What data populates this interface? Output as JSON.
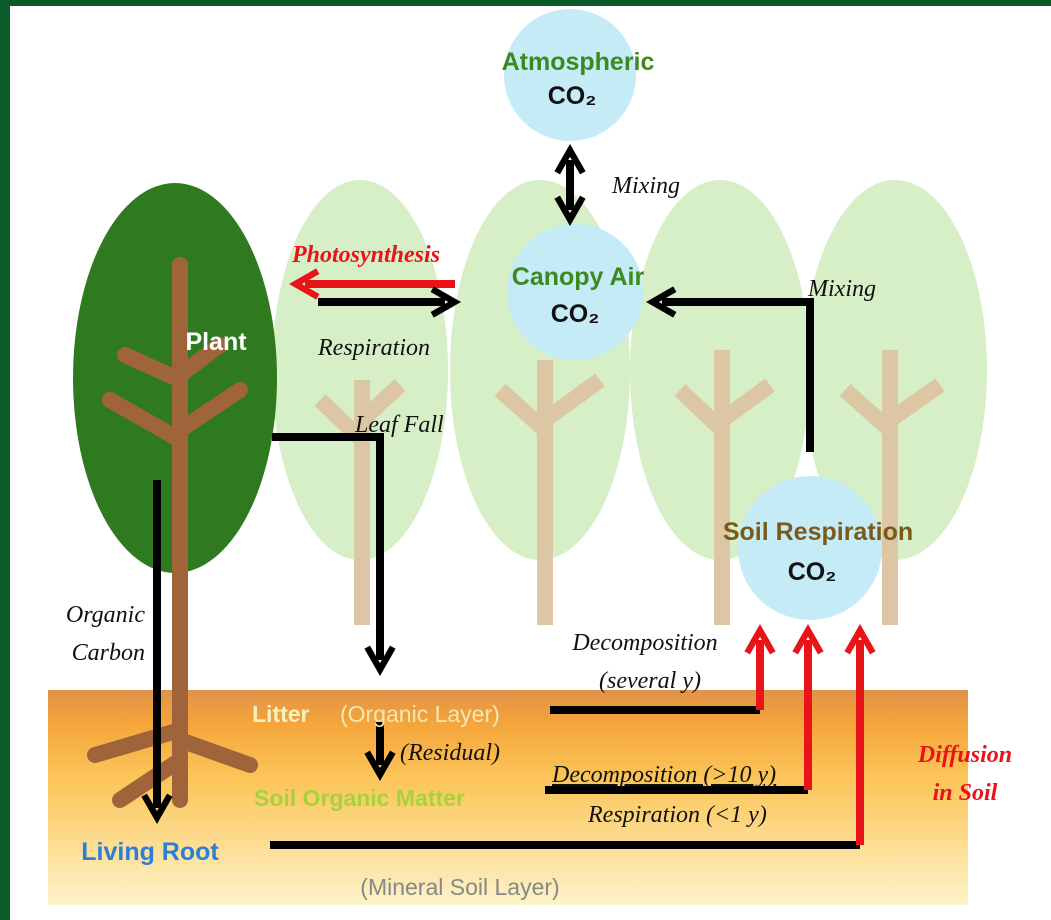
{
  "atmospheric": {
    "lines": [
      "Atmospheric",
      "CO₂"
    ]
  },
  "mixing_top": "Mixing",
  "photosynthesis": "Photosynthesis",
  "respiration": "Respiration",
  "canopy": {
    "lines": [
      "Canopy Air",
      "CO₂"
    ]
  },
  "mixing_right": "Mixing",
  "plant": "Plant",
  "leaf_fall": "Leaf Fall",
  "soil_respiration": {
    "lines": [
      "Soil Respiration",
      "CO₂"
    ]
  },
  "organic_carbon": {
    "lines": [
      "Organic",
      "Carbon"
    ]
  },
  "decomposition_litter": {
    "lines": [
      "Decomposition",
      "(several y)"
    ]
  },
  "litter": {
    "name": "Litter",
    "layer": "(Organic Layer)"
  },
  "residual": "(Residual)",
  "decomposition_som": "Decomposition (>10 y)",
  "soil_organic_matter": "Soil Organic Matter",
  "respiration_root": "Respiration (<1 y)",
  "diffusion": {
    "lines": [
      "Diffusion",
      "in Soil"
    ]
  },
  "living_root": "Living Root",
  "mineral_layer": "(Mineral Soil Layer)"
}
